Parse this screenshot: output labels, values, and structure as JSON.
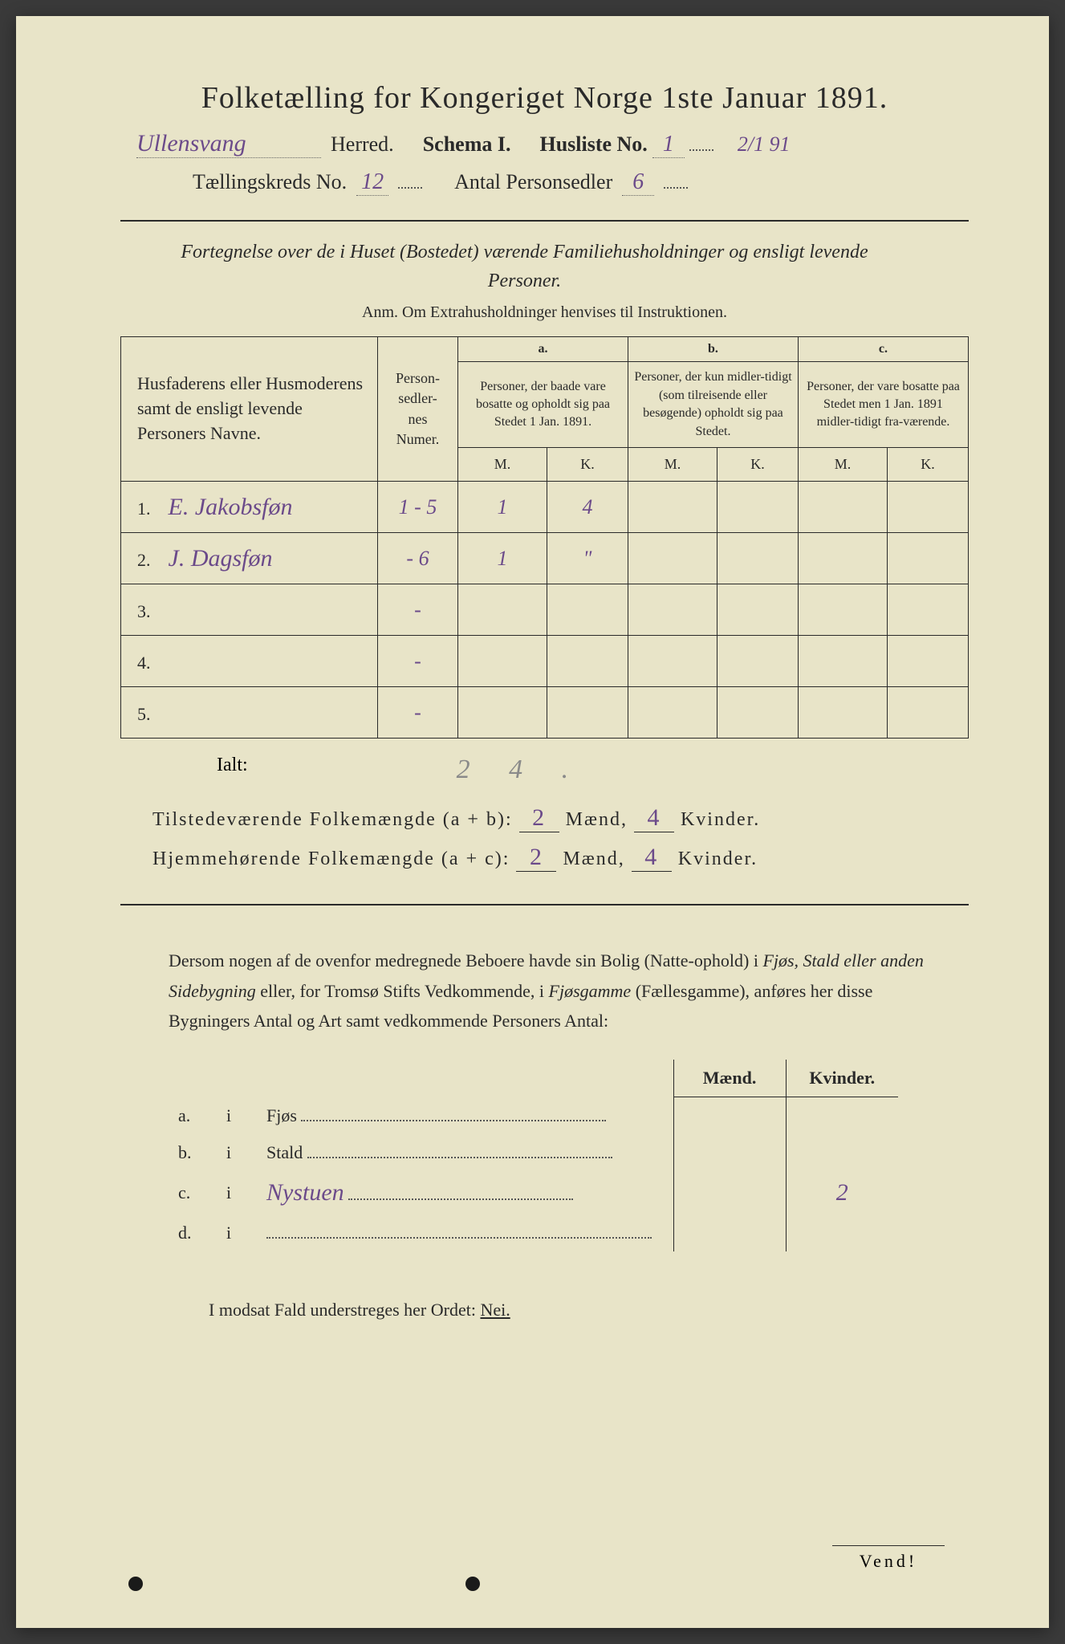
{
  "title": "Folketælling for Kongeriget Norge 1ste Januar 1891.",
  "header": {
    "herred_hw": "Ullensvang",
    "herred_label": "Herred.",
    "schema_label": "Schema I.",
    "husliste_label": "Husliste No.",
    "husliste_no": "1",
    "date_margin": "2/1 91",
    "kreds_label": "Tællingskreds No.",
    "kreds_no": "12",
    "antal_label": "Antal Personsedler",
    "antal_val": "6"
  },
  "subtitle": "Fortegnelse over de i Huset (Bostedet) værende Familiehusholdninger og ensligt levende Personer.",
  "anm": "Anm.  Om Extrahusholdninger henvises til Instruktionen.",
  "table": {
    "head_name": "Husfaderens eller Husmoderens samt de ensligt levende Personers Navne.",
    "head_numer": "Person-\nsedler-\nnes\nNumer.",
    "a_label": "a.",
    "a_text": "Personer, der baade vare bosatte og opholdt sig paa Stedet 1 Jan. 1891.",
    "b_label": "b.",
    "b_text": "Personer, der kun midler-tidigt (som tilreisende eller besøgende) opholdt sig paa Stedet.",
    "c_label": "c.",
    "c_text": "Personer, der vare bosatte paa Stedet men 1 Jan. 1891 midler-tidigt fra-værende.",
    "m": "M.",
    "k": "K.",
    "rows": [
      {
        "n": "1.",
        "name": "E. Jakobsføn",
        "numer": "1 - 5",
        "am": "1",
        "ak": "4",
        "bm": "",
        "bk": "",
        "cm": "",
        "ck": ""
      },
      {
        "n": "2.",
        "name": "J. Dagsføn",
        "numer": "- 6",
        "am": "1",
        "ak": "\"",
        "bm": "",
        "bk": "",
        "cm": "",
        "ck": ""
      },
      {
        "n": "3.",
        "name": "",
        "numer": "-",
        "am": "",
        "ak": "",
        "bm": "",
        "bk": "",
        "cm": "",
        "ck": ""
      },
      {
        "n": "4.",
        "name": "",
        "numer": "-",
        "am": "",
        "ak": "",
        "bm": "",
        "bk": "",
        "cm": "",
        "ck": ""
      },
      {
        "n": "5.",
        "name": "",
        "numer": "-",
        "am": "",
        "ak": "",
        "bm": "",
        "bk": "",
        "cm": "",
        "ck": ""
      }
    ]
  },
  "ialt_label": "Ialt:",
  "ialt_val": "2 4 .",
  "summary": {
    "line1_a": "Tilstedeværende Folkemængde (a + b):",
    "line1_m": "2",
    "line1_mlabel": "Mænd,",
    "line1_k": "4",
    "line1_klabel": "Kvinder.",
    "line2_a": "Hjemmehørende Folkemængde (a + c):",
    "line2_m": "2",
    "line2_k": "4"
  },
  "para": {
    "t1": "Dersom nogen af de ovenfor medregnede Beboere havde sin Bolig (Natte-ophold) i ",
    "it1": "Fjøs, Stald eller anden Sidebygning",
    "t2": " eller, for Tromsø Stifts Vedkommende, i ",
    "it2": "Fjøsgamme",
    "t3": " (Fællesgamme), anføres her disse Bygningers ",
    "b1": "Antal",
    "t4": " og ",
    "b2": "Art",
    "t5": " samt vedkommende Personers Antal:"
  },
  "sub": {
    "maend": "Mænd.",
    "kvinder": "Kvinder.",
    "rows": [
      {
        "l": "a.",
        "i": "i",
        "name": "Fjøs",
        "hw": "",
        "m": "",
        "k": ""
      },
      {
        "l": "b.",
        "i": "i",
        "name": "Stald",
        "hw": "",
        "m": "",
        "k": ""
      },
      {
        "l": "c.",
        "i": "i",
        "name": "",
        "hw": "Nystuen",
        "m": "",
        "k": "2"
      },
      {
        "l": "d.",
        "i": "i",
        "name": "",
        "hw": "",
        "m": "",
        "k": ""
      }
    ]
  },
  "modsat": "I modsat Fald understreges her Ordet: ",
  "nei": "Nei.",
  "vend": "Vend!"
}
